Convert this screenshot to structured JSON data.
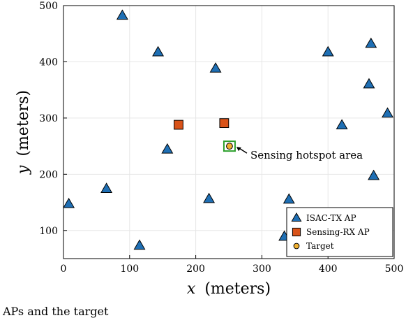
{
  "chart_data": {
    "type": "scatter",
    "xlabel_var": "x",
    "xlabel_unit": "(meters)",
    "ylabel_var": "y",
    "ylabel_unit": "(meters)",
    "xlim": [
      0,
      500
    ],
    "ylim": [
      50,
      500
    ],
    "xticks": [
      0,
      100,
      200,
      300,
      400,
      500
    ],
    "yticks": [
      100,
      200,
      300,
      400,
      500
    ],
    "grid": true,
    "legend_position": "bottom-right",
    "series": [
      {
        "name": "ISAC-TX AP",
        "marker": "triangle",
        "color": "#1f6fb4",
        "points": [
          {
            "x": 8,
            "y": 147
          },
          {
            "x": 65,
            "y": 174
          },
          {
            "x": 89,
            "y": 482
          },
          {
            "x": 115,
            "y": 73
          },
          {
            "x": 143,
            "y": 417
          },
          {
            "x": 157,
            "y": 244
          },
          {
            "x": 220,
            "y": 156
          },
          {
            "x": 230,
            "y": 388
          },
          {
            "x": 334,
            "y": 89
          },
          {
            "x": 341,
            "y": 155
          },
          {
            "x": 400,
            "y": 417
          },
          {
            "x": 421,
            "y": 287
          },
          {
            "x": 462,
            "y": 360
          },
          {
            "x": 465,
            "y": 432
          },
          {
            "x": 469,
            "y": 197
          },
          {
            "x": 490,
            "y": 308
          }
        ]
      },
      {
        "name": "Sensing-RX AP",
        "marker": "square",
        "color": "#d95319",
        "points": [
          {
            "x": 174,
            "y": 288
          },
          {
            "x": 243,
            "y": 291
          }
        ]
      },
      {
        "name": "Target",
        "marker": "circle",
        "color": "#f0b030",
        "points": [
          {
            "x": 251,
            "y": 250
          }
        ]
      }
    ],
    "annotation": {
      "text": "Sensing hotspot area",
      "box_color": "#2ca02c",
      "target_x": 251,
      "target_y": 250
    }
  },
  "caption_fragment": "APs and the target"
}
